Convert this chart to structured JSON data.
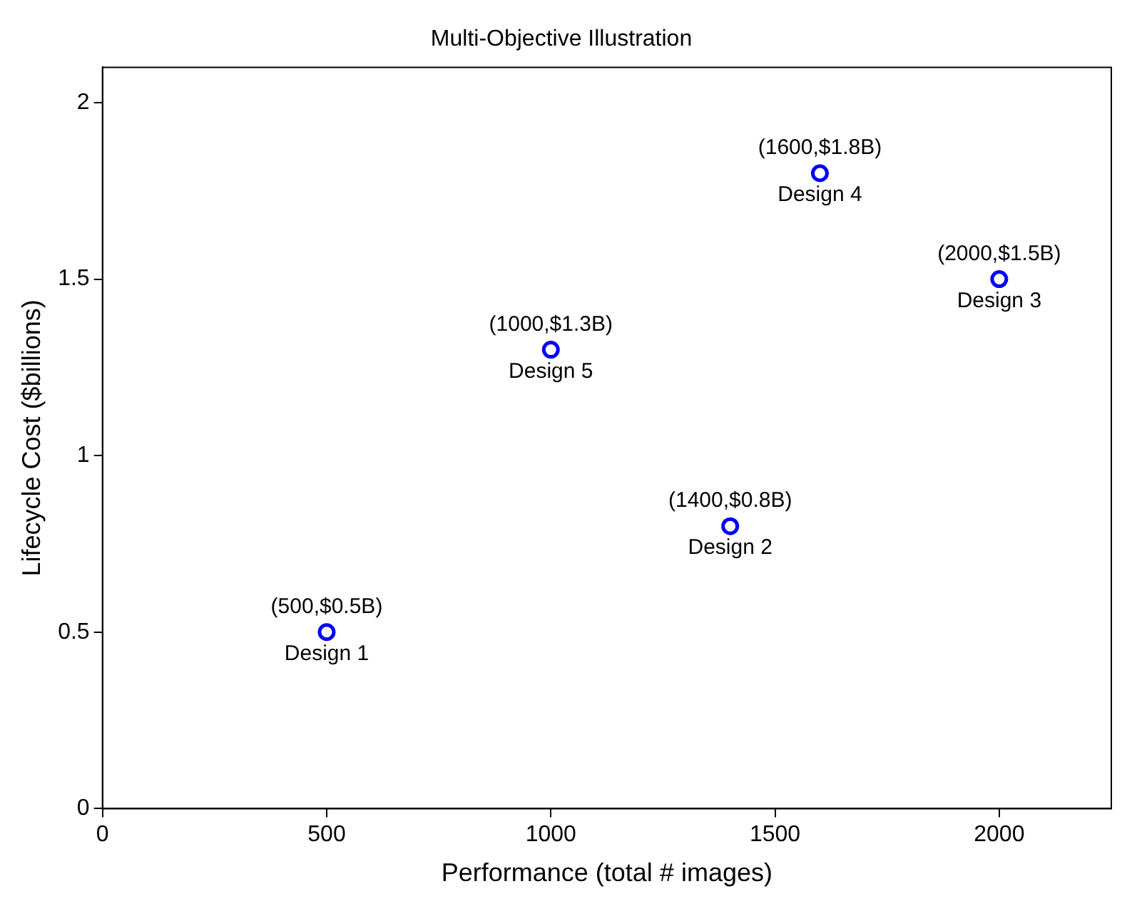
{
  "chart_data": {
    "type": "scatter",
    "title": "Multi-Objective Illustration",
    "xlabel": "Performance (total # images)",
    "ylabel": "Lifecycle Cost ($billions)",
    "x": [
      500,
      1400,
      2000,
      1600,
      1000
    ],
    "series": [
      {
        "color": "#0000ff",
        "values": [
          0.5,
          0.8,
          1.5,
          1.8,
          1.3
        ]
      }
    ],
    "xlim": [
      0,
      2250
    ],
    "xticks": [
      0,
      500,
      1000,
      1500,
      2000
    ],
    "ylim": [
      0,
      2.1
    ],
    "yticks": [
      0,
      0.5,
      1,
      1.5,
      2
    ],
    "grid": false,
    "legend": false,
    "marker": "circle",
    "annotations": [
      {
        "text": "(500,$0.5B)",
        "x": 500,
        "y": 0.5
      },
      {
        "text": "Design 1",
        "x": 500,
        "y": 0.5
      },
      {
        "text": "(1400,$0.8B)",
        "x": 1400,
        "y": 0.8
      },
      {
        "text": "Design 2",
        "x": 1400,
        "y": 0.8
      },
      {
        "text": "(2000,$1.5B)",
        "x": 2000,
        "y": 1.5
      },
      {
        "text": "Design 3",
        "x": 2000,
        "y": 1.5
      },
      {
        "text": "(1600,$1.8B)",
        "x": 1600,
        "y": 1.8
      },
      {
        "text": "Design 4",
        "x": 1600,
        "y": 1.8
      },
      {
        "text": "(1000,$1.3B)",
        "x": 1000,
        "y": 1.3
      },
      {
        "text": "Design 5",
        "x": 1000,
        "y": 1.3
      }
    ]
  }
}
